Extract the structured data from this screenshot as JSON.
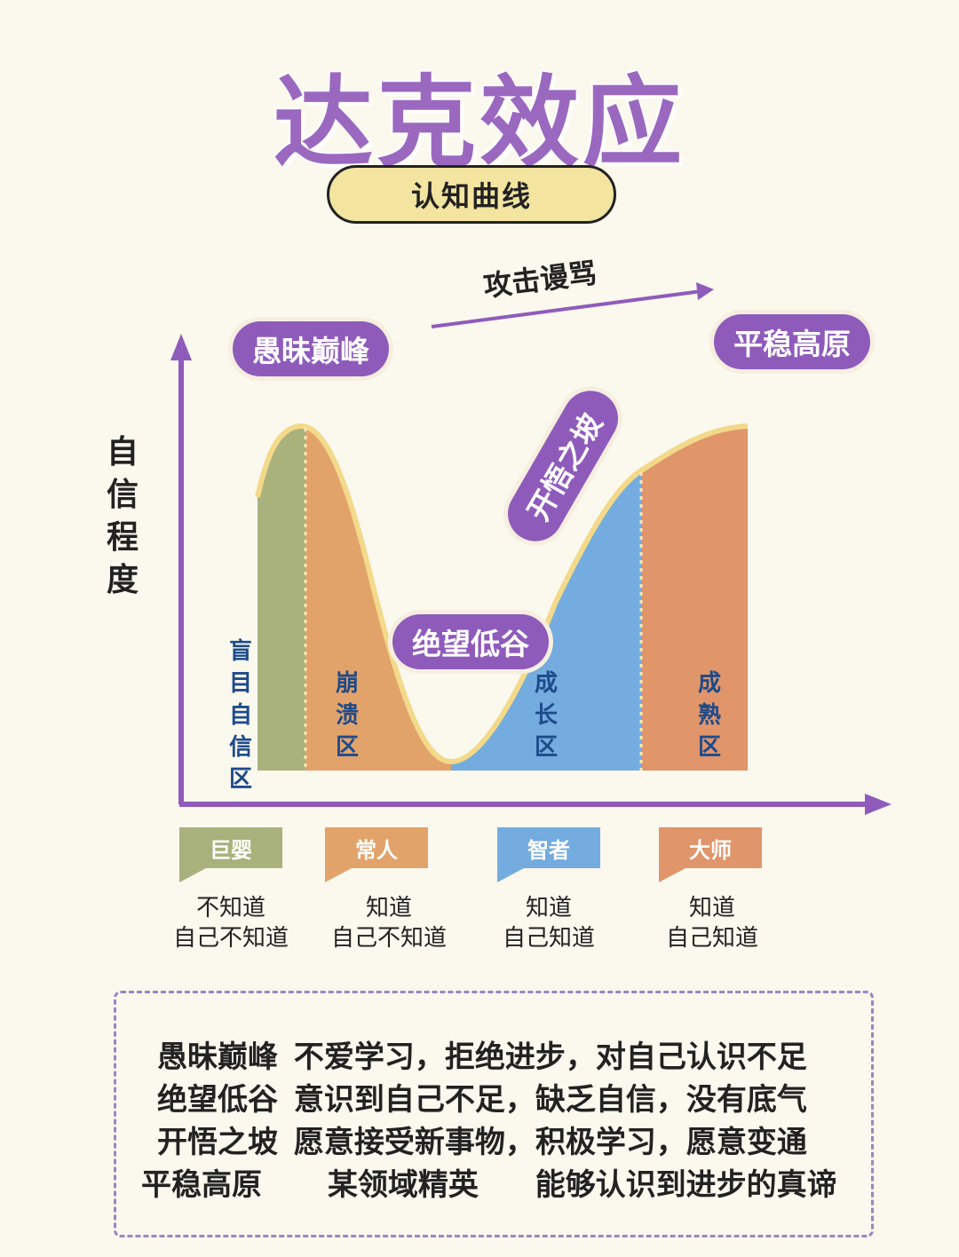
{
  "title": "达克效应",
  "subtitle": "认知曲线",
  "y_axis_label": [
    "自",
    "信",
    "程",
    "度"
  ],
  "arrow_label": "攻击谩骂",
  "stages": {
    "peak": "愚昧巅峰",
    "valley": "绝望低谷",
    "slope": "开悟之坡",
    "plateau": "平稳高原"
  },
  "zones": [
    {
      "label": [
        "盲",
        "目",
        "自",
        "信",
        "区"
      ],
      "color": "#a9b27d"
    },
    {
      "label": [
        "崩",
        "溃",
        "区"
      ],
      "color": "#e2a36b"
    },
    {
      "label": [
        "成",
        "长",
        "区"
      ],
      "color": "#74acdf"
    },
    {
      "label": [
        "成",
        "熟",
        "区"
      ],
      "color": "#e0956b"
    }
  ],
  "people": [
    {
      "name": "巨婴",
      "desc": [
        "不知道",
        "自己不知道"
      ],
      "color": "#a9b27d"
    },
    {
      "name": "常人",
      "desc": [
        "知道",
        "自己不知道"
      ],
      "color": "#e2a36b"
    },
    {
      "name": "智者",
      "desc": [
        "知道",
        "自己知道"
      ],
      "color": "#74acdf"
    },
    {
      "name": "大师",
      "desc": [
        "知道",
        "自己知道"
      ],
      "color": "#e0956b"
    }
  ],
  "summary": [
    {
      "stage": "愚昧巅峰",
      "text": "不爱学习，拒绝进步，对自己认识不足"
    },
    {
      "stage": "绝望低谷",
      "text": "意识到自己不足，缺乏自信，没有底气"
    },
    {
      "stage": "开悟之坡",
      "text": "愿意接受新事物，积极学习，愿意变通"
    },
    {
      "stage": "平稳高原",
      "text": "某领域精英",
      "text2": "能够认识到进步的真谛"
    }
  ],
  "colors": {
    "accent": "#8f5bbb",
    "axis": "#8f5bbb",
    "curve_border": "#f3d98a"
  }
}
